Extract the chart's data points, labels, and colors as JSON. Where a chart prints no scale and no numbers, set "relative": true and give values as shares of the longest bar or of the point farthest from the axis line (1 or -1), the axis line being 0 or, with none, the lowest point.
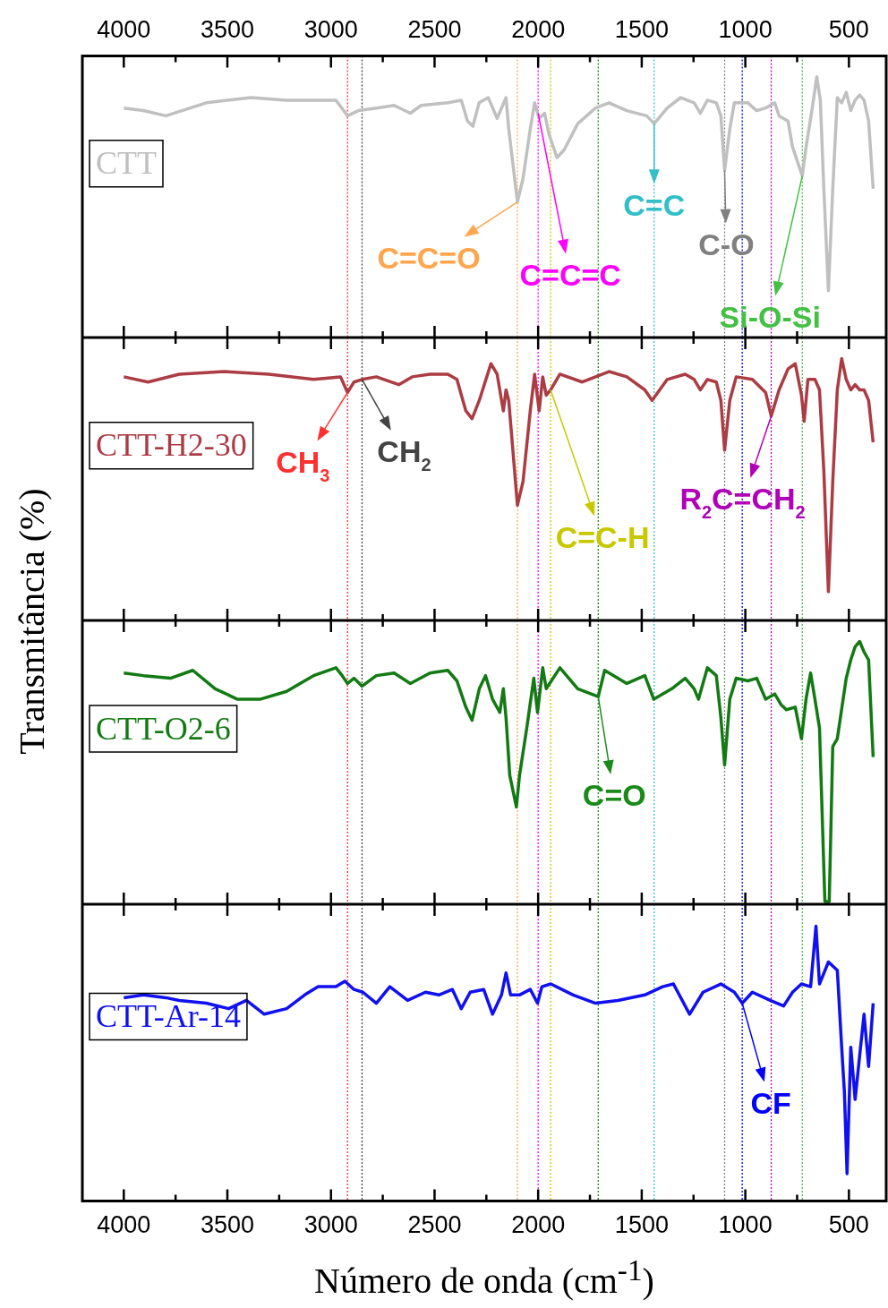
{
  "chart_data": [
    {
      "type": "line",
      "relative": true,
      "marker": "none",
      "legend": "left",
      "ylabel": "Transmitância (%)",
      "xlim": [
        4200,
        320
      ],
      "xticks": [
        4000,
        {
          "value": 3750,
          "label": null
        },
        3500,
        {
          "value": 3250,
          "label": null
        },
        3000,
        {
          "value": 2750,
          "label": null
        },
        2500,
        {
          "value": 2250,
          "label": null
        },
        2000,
        {
          "value": 1750,
          "label": null
        },
        1500,
        {
          "value": 1250,
          "label": null
        },
        1000,
        {
          "value": 750,
          "label": null
        },
        500
      ],
      "x": [
        4000,
        3905,
        3797,
        3602,
        3386,
        3214,
        3084,
        2976,
        2920,
        2868,
        2781,
        2695,
        2617,
        2565,
        2436,
        2371,
        2341,
        2315,
        2285,
        2241,
        2198,
        2155,
        2142,
        2100,
        2073,
        2038,
        2017,
        1995,
        1969,
        1948,
        1909,
        1874,
        1809,
        1723,
        1658,
        1572,
        1476,
        1440,
        1377,
        1312,
        1247,
        1217,
        1183,
        1140,
        1118,
        1100,
        1075,
        1053,
        988,
        945,
        902,
        858,
        837,
        794,
        772,
        725,
        707,
        677,
        655,
        638,
        621,
        599,
        578,
        556,
        535,
        513,
        491,
        470,
        448,
        427,
        405,
        383
      ],
      "series": [
        {
          "name": "CTT",
          "color": "#c0c0c0",
          "values": [
            0.88,
            0.87,
            0.85,
            0.9,
            0.92,
            0.91,
            0.91,
            0.91,
            0.85,
            0.87,
            0.88,
            0.89,
            0.86,
            0.89,
            0.9,
            0.91,
            0.83,
            0.81,
            0.9,
            0.92,
            0.84,
            0.92,
            0.8,
            0.52,
            0.61,
            0.8,
            0.9,
            0.84,
            0.86,
            0.78,
            0.69,
            0.72,
            0.82,
            0.88,
            0.9,
            0.87,
            0.85,
            0.82,
            0.88,
            0.92,
            0.9,
            0.86,
            0.91,
            0.9,
            0.85,
            0.64,
            0.8,
            0.9,
            0.9,
            0.87,
            0.88,
            0.9,
            0.85,
            0.83,
            0.73,
            0.62,
            0.73,
            0.88,
            1.0,
            0.91,
            0.57,
            0.18,
            0.57,
            0.92,
            0.9,
            0.94,
            0.87,
            0.91,
            0.93,
            0.91,
            0.83,
            0.57
          ]
        }
      ],
      "ref_lines": [
        {
          "axis": "x",
          "value": 2920,
          "color": "#ff3030",
          "line_style": "dotted"
        },
        {
          "axis": "x",
          "value": 2850,
          "color": "#444444",
          "line_style": "dotted"
        },
        {
          "axis": "x",
          "value": 2100,
          "color": "#ffa64d",
          "line_style": "dotted"
        },
        {
          "axis": "x",
          "value": 2000,
          "color": "#ff00ff",
          "line_style": "dotted"
        },
        {
          "axis": "x",
          "value": 1940,
          "color": "#c8c800",
          "line_style": "dotted"
        },
        {
          "axis": "x",
          "value": 1710,
          "color": "#1a8a1a",
          "line_style": "dotted"
        },
        {
          "axis": "x",
          "value": 1440,
          "color": "#33bfc6",
          "line_style": "dotted"
        },
        {
          "axis": "x",
          "value": 1100,
          "color": "#808080",
          "line_style": "dotted"
        },
        {
          "axis": "x",
          "value": 1015,
          "color": "#0000ff",
          "line_style": "dotted"
        },
        {
          "axis": "x",
          "value": 875,
          "color": "#b000b8",
          "line_style": "dotted"
        },
        {
          "axis": "x",
          "value": 725,
          "color": "#44c044",
          "line_style": "dotted"
        }
      ],
      "annotations": [
        {
          "text": "C=C=O",
          "x": 2100,
          "y": 0.52
        },
        {
          "text": "C=C=C",
          "x": 2000,
          "y": 0.86
        },
        {
          "text": "C=C",
          "x": 1440,
          "y": 0.82
        },
        {
          "text": "C-O",
          "x": 1100,
          "y": 0.64
        },
        {
          "text": "Si-O-Si",
          "x": 725,
          "y": 0.62
        }
      ]
    },
    {
      "type": "line",
      "relative": true,
      "marker": "none",
      "legend": "left",
      "tick_labels": false,
      "xlim": [
        4200,
        320
      ],
      "xticks": [
        4000,
        {
          "value": 3750,
          "label": null
        },
        3500,
        {
          "value": 3250,
          "label": null
        },
        3000,
        {
          "value": 2750,
          "label": null
        },
        2500,
        {
          "value": 2250,
          "label": null
        },
        2000,
        {
          "value": 1750,
          "label": null
        },
        1500,
        {
          "value": 1250,
          "label": null
        },
        1000,
        {
          "value": 750,
          "label": null
        },
        500
      ],
      "x": [
        4000,
        3883,
        3732,
        3516,
        3300,
        3084,
        2954,
        2920,
        2889,
        2850,
        2781,
        2673,
        2608,
        2522,
        2436,
        2392,
        2349,
        2319,
        2284,
        2228,
        2198,
        2168,
        2155,
        2142,
        2100,
        2073,
        2038,
        2017,
        1995,
        1978,
        1961,
        1940,
        1895,
        1787,
        1658,
        1572,
        1485,
        1450,
        1377,
        1290,
        1247,
        1217,
        1183,
        1140,
        1118,
        1100,
        1075,
        1044,
        966,
        902,
        875,
        837,
        794,
        759,
        729,
        716,
        698,
        664,
        642,
        621,
        599,
        578,
        556,
        535,
        513,
        491,
        470,
        448,
        427,
        405,
        383
      ],
      "series": [
        {
          "name": "CTT-H2-30",
          "color": "#ac3c44",
          "values": [
            0.93,
            0.91,
            0.94,
            0.95,
            0.94,
            0.92,
            0.93,
            0.87,
            0.91,
            0.92,
            0.93,
            0.9,
            0.93,
            0.94,
            0.94,
            0.92,
            0.8,
            0.77,
            0.84,
            0.98,
            0.94,
            0.8,
            0.88,
            0.84,
            0.44,
            0.53,
            0.8,
            0.94,
            0.8,
            0.93,
            0.86,
            0.88,
            0.94,
            0.91,
            0.95,
            0.93,
            0.88,
            0.84,
            0.92,
            0.94,
            0.92,
            0.88,
            0.92,
            0.91,
            0.84,
            0.65,
            0.84,
            0.93,
            0.92,
            0.87,
            0.78,
            0.88,
            0.96,
            0.98,
            0.86,
            0.76,
            0.92,
            0.92,
            0.88,
            0.57,
            0.11,
            0.53,
            0.88,
            1.0,
            0.92,
            0.88,
            0.9,
            0.88,
            0.88,
            0.84,
            0.68
          ]
        }
      ],
      "ref_lines": [
        {
          "axis": "x",
          "value": 2920,
          "color": "#ff3030",
          "line_style": "dotted"
        },
        {
          "axis": "x",
          "value": 2850,
          "color": "#444444",
          "line_style": "dotted"
        },
        {
          "axis": "x",
          "value": 2100,
          "color": "#ffa64d",
          "line_style": "dotted"
        },
        {
          "axis": "x",
          "value": 2000,
          "color": "#ff00ff",
          "line_style": "dotted"
        },
        {
          "axis": "x",
          "value": 1940,
          "color": "#c8c800",
          "line_style": "dotted"
        },
        {
          "axis": "x",
          "value": 1710,
          "color": "#1a8a1a",
          "line_style": "dotted"
        },
        {
          "axis": "x",
          "value": 1440,
          "color": "#33bfc6",
          "line_style": "dotted"
        },
        {
          "axis": "x",
          "value": 1100,
          "color": "#808080",
          "line_style": "dotted"
        },
        {
          "axis": "x",
          "value": 1015,
          "color": "#0000ff",
          "line_style": "dotted"
        },
        {
          "axis": "x",
          "value": 875,
          "color": "#b000b8",
          "line_style": "dotted"
        },
        {
          "axis": "x",
          "value": 725,
          "color": "#44c044",
          "line_style": "dotted"
        }
      ],
      "annotations": [
        {
          "text": "CH$_{3}$",
          "x": 2920,
          "y": 0.87
        },
        {
          "text": "CH$_{2}$",
          "x": 2850,
          "y": 0.92
        },
        {
          "text": "C=C-H",
          "x": 1940,
          "y": 0.88
        },
        {
          "text": "R$_{2}$C=CH$_{2}$",
          "x": 875,
          "y": 0.78
        }
      ]
    },
    {
      "type": "line",
      "relative": true,
      "marker": "none",
      "legend": "left",
      "tick_labels": false,
      "xlim": [
        4200,
        320
      ],
      "xticks": [
        4000,
        {
          "value": 3750,
          "label": null
        },
        3500,
        {
          "value": 3250,
          "label": null
        },
        3000,
        {
          "value": 2750,
          "label": null
        },
        2500,
        {
          "value": 2250,
          "label": null
        },
        2000,
        {
          "value": 1750,
          "label": null
        },
        1500,
        {
          "value": 1250,
          "label": null
        },
        1000,
        {
          "value": 750,
          "label": null
        },
        500
      ],
      "x": [
        4000,
        3905,
        3775,
        3667,
        3559,
        3451,
        3343,
        3214,
        3084,
        2976,
        2946,
        2920,
        2889,
        2850,
        2781,
        2695,
        2617,
        2522,
        2436,
        2392,
        2349,
        2319,
        2284,
        2254,
        2220,
        2185,
        2168,
        2155,
        2137,
        2105,
        2090,
        2055,
        2021,
        2003,
        1978,
        1961,
        1895,
        1809,
        1710,
        1679,
        1572,
        1485,
        1442,
        1355,
        1290,
        1247,
        1226,
        1183,
        1140,
        1118,
        1100,
        1075,
        1044,
        988,
        945,
        902,
        858,
        828,
        802,
        759,
        729,
        707,
        685,
        664,
        642,
        629,
        616,
        595,
        578,
        556,
        513,
        491,
        470,
        448,
        427,
        405,
        383
      ],
      "series": [
        {
          "name": "CTT-O2-6",
          "color": "#137a13",
          "values": [
            0.88,
            0.87,
            0.86,
            0.89,
            0.82,
            0.78,
            0.78,
            0.81,
            0.87,
            0.9,
            0.87,
            0.84,
            0.86,
            0.83,
            0.87,
            0.88,
            0.84,
            0.88,
            0.89,
            0.85,
            0.75,
            0.7,
            0.82,
            0.87,
            0.78,
            0.73,
            0.82,
            0.71,
            0.49,
            0.37,
            0.49,
            0.67,
            0.86,
            0.73,
            0.9,
            0.82,
            0.9,
            0.82,
            0.79,
            0.89,
            0.84,
            0.87,
            0.78,
            0.82,
            0.86,
            0.82,
            0.78,
            0.9,
            0.87,
            0.71,
            0.53,
            0.78,
            0.86,
            0.85,
            0.86,
            0.78,
            0.8,
            0.76,
            0.74,
            0.75,
            0.63,
            0.78,
            0.88,
            0.78,
            0.67,
            0.34,
            0.01,
            0.01,
            0.6,
            0.63,
            0.86,
            0.93,
            0.98,
            1.0,
            0.96,
            0.93,
            0.56
          ]
        }
      ],
      "ref_lines": [
        {
          "axis": "x",
          "value": 2920,
          "color": "#ff3030",
          "line_style": "dotted"
        },
        {
          "axis": "x",
          "value": 2850,
          "color": "#444444",
          "line_style": "dotted"
        },
        {
          "axis": "x",
          "value": 2100,
          "color": "#ffa64d",
          "line_style": "dotted"
        },
        {
          "axis": "x",
          "value": 2000,
          "color": "#ff00ff",
          "line_style": "dotted"
        },
        {
          "axis": "x",
          "value": 1940,
          "color": "#c8c800",
          "line_style": "dotted"
        },
        {
          "axis": "x",
          "value": 1710,
          "color": "#1a8a1a",
          "line_style": "dotted"
        },
        {
          "axis": "x",
          "value": 1440,
          "color": "#33bfc6",
          "line_style": "dotted"
        },
        {
          "axis": "x",
          "value": 1100,
          "color": "#808080",
          "line_style": "dotted"
        },
        {
          "axis": "x",
          "value": 1015,
          "color": "#0000ff",
          "line_style": "dotted"
        },
        {
          "axis": "x",
          "value": 875,
          "color": "#b000b8",
          "line_style": "dotted"
        },
        {
          "axis": "x",
          "value": 725,
          "color": "#44c044",
          "line_style": "dotted"
        }
      ],
      "annotations": [
        {
          "text": "C=O",
          "x": 1710,
          "y": 0.79
        }
      ]
    },
    {
      "type": "line",
      "relative": true,
      "marker": "none",
      "legend": "left",
      "xlabel": "Número de onda (cm$^{-1}$)",
      "xlim": [
        4200,
        320
      ],
      "xticks": [
        4000,
        {
          "value": 3750,
          "label": null
        },
        3500,
        {
          "value": 3250,
          "label": null
        },
        3000,
        {
          "value": 2750,
          "label": null
        },
        2500,
        {
          "value": 2250,
          "label": null
        },
        2000,
        {
          "value": 1750,
          "label": null
        },
        1500,
        {
          "value": 1250,
          "label": null
        },
        1000,
        {
          "value": 750,
          "label": null
        },
        500
      ],
      "x": [
        4000,
        3905,
        3797,
        3732,
        3602,
        3494,
        3408,
        3322,
        3214,
        3127,
        3062,
        2976,
        2933,
        2889,
        2846,
        2781,
        2716,
        2630,
        2544,
        2479,
        2414,
        2371,
        2328,
        2263,
        2220,
        2177,
        2155,
        2133,
        2090,
        2038,
        2003,
        1982,
        1939,
        1831,
        1723,
        1615,
        1485,
        1399,
        1347,
        1269,
        1204,
        1118,
        1053,
        1015,
        966,
        880,
        815,
        772,
        729,
        685,
        659,
        642,
        599,
        556,
        535,
        522,
        509,
        491,
        470,
        448,
        427,
        405,
        383
      ],
      "series": [
        {
          "name": "CTT-Ar-14",
          "color": "#1010f0",
          "values": [
            0.74,
            0.75,
            0.74,
            0.73,
            0.72,
            0.7,
            0.73,
            0.68,
            0.7,
            0.75,
            0.78,
            0.78,
            0.8,
            0.77,
            0.76,
            0.72,
            0.78,
            0.73,
            0.76,
            0.75,
            0.77,
            0.7,
            0.76,
            0.77,
            0.68,
            0.75,
            0.83,
            0.75,
            0.75,
            0.77,
            0.72,
            0.78,
            0.79,
            0.75,
            0.72,
            0.73,
            0.75,
            0.78,
            0.79,
            0.68,
            0.76,
            0.79,
            0.76,
            0.72,
            0.76,
            0.73,
            0.71,
            0.76,
            0.79,
            0.78,
            1.0,
            0.79,
            0.87,
            0.84,
            0.56,
            0.4,
            0.1,
            0.56,
            0.37,
            0.53,
            0.68,
            0.49,
            0.72
          ]
        }
      ],
      "ref_lines": [
        {
          "axis": "x",
          "value": 2920,
          "color": "#ff3030",
          "line_style": "dotted"
        },
        {
          "axis": "x",
          "value": 2850,
          "color": "#444444",
          "line_style": "dotted"
        },
        {
          "axis": "x",
          "value": 2100,
          "color": "#ffa64d",
          "line_style": "dotted"
        },
        {
          "axis": "x",
          "value": 2000,
          "color": "#ff00ff",
          "line_style": "dotted"
        },
        {
          "axis": "x",
          "value": 1940,
          "color": "#c8c800",
          "line_style": "dotted"
        },
        {
          "axis": "x",
          "value": 1710,
          "color": "#1a8a1a",
          "line_style": "dotted"
        },
        {
          "axis": "x",
          "value": 1440,
          "color": "#33bfc6",
          "line_style": "dotted"
        },
        {
          "axis": "x",
          "value": 1100,
          "color": "#808080",
          "line_style": "dotted"
        },
        {
          "axis": "x",
          "value": 1015,
          "color": "#0000ff",
          "line_style": "dotted"
        },
        {
          "axis": "x",
          "value": 875,
          "color": "#b000b8",
          "line_style": "dotted"
        },
        {
          "axis": "x",
          "value": 725,
          "color": "#44c044",
          "line_style": "dotted"
        }
      ],
      "annotations": [
        {
          "text": "CF",
          "x": 1015,
          "y": 0.72
        }
      ]
    }
  ]
}
